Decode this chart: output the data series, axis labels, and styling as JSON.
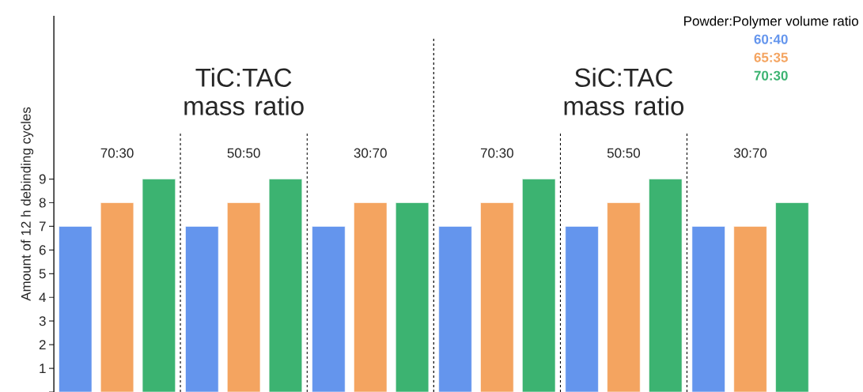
{
  "chart_data": {
    "type": "bar",
    "ylabel": "Amount of 12 h debinding cycles",
    "legend_title": "Powder:Polymer volume ratio",
    "legend": "top right",
    "categories": [
      "70:30",
      "50:50",
      "30:70",
      "70:30",
      "50:50",
      "30:70"
    ],
    "series": [
      {
        "name": "60:40",
        "color": "#6495ed",
        "values": [
          7,
          7,
          7,
          7,
          7,
          7
        ]
      },
      {
        "name": "65:35",
        "color": "#f4a460",
        "values": [
          8,
          8,
          8,
          8,
          8,
          7
        ]
      },
      {
        "name": "70:30",
        "color": "#3cb371",
        "values": [
          9,
          9,
          8,
          9,
          9,
          8
        ]
      }
    ],
    "ylim": [
      0,
      15.9
    ],
    "yticks": [
      {
        "value": 0,
        "label": null
      },
      1,
      2,
      3,
      4,
      5,
      6,
      7,
      8,
      9
    ],
    "tick_labels": "y",
    "grid": false,
    "annotations": [
      "TiC:TAC mass ratio",
      "SiC:TAC mass ratio"
    ]
  }
}
